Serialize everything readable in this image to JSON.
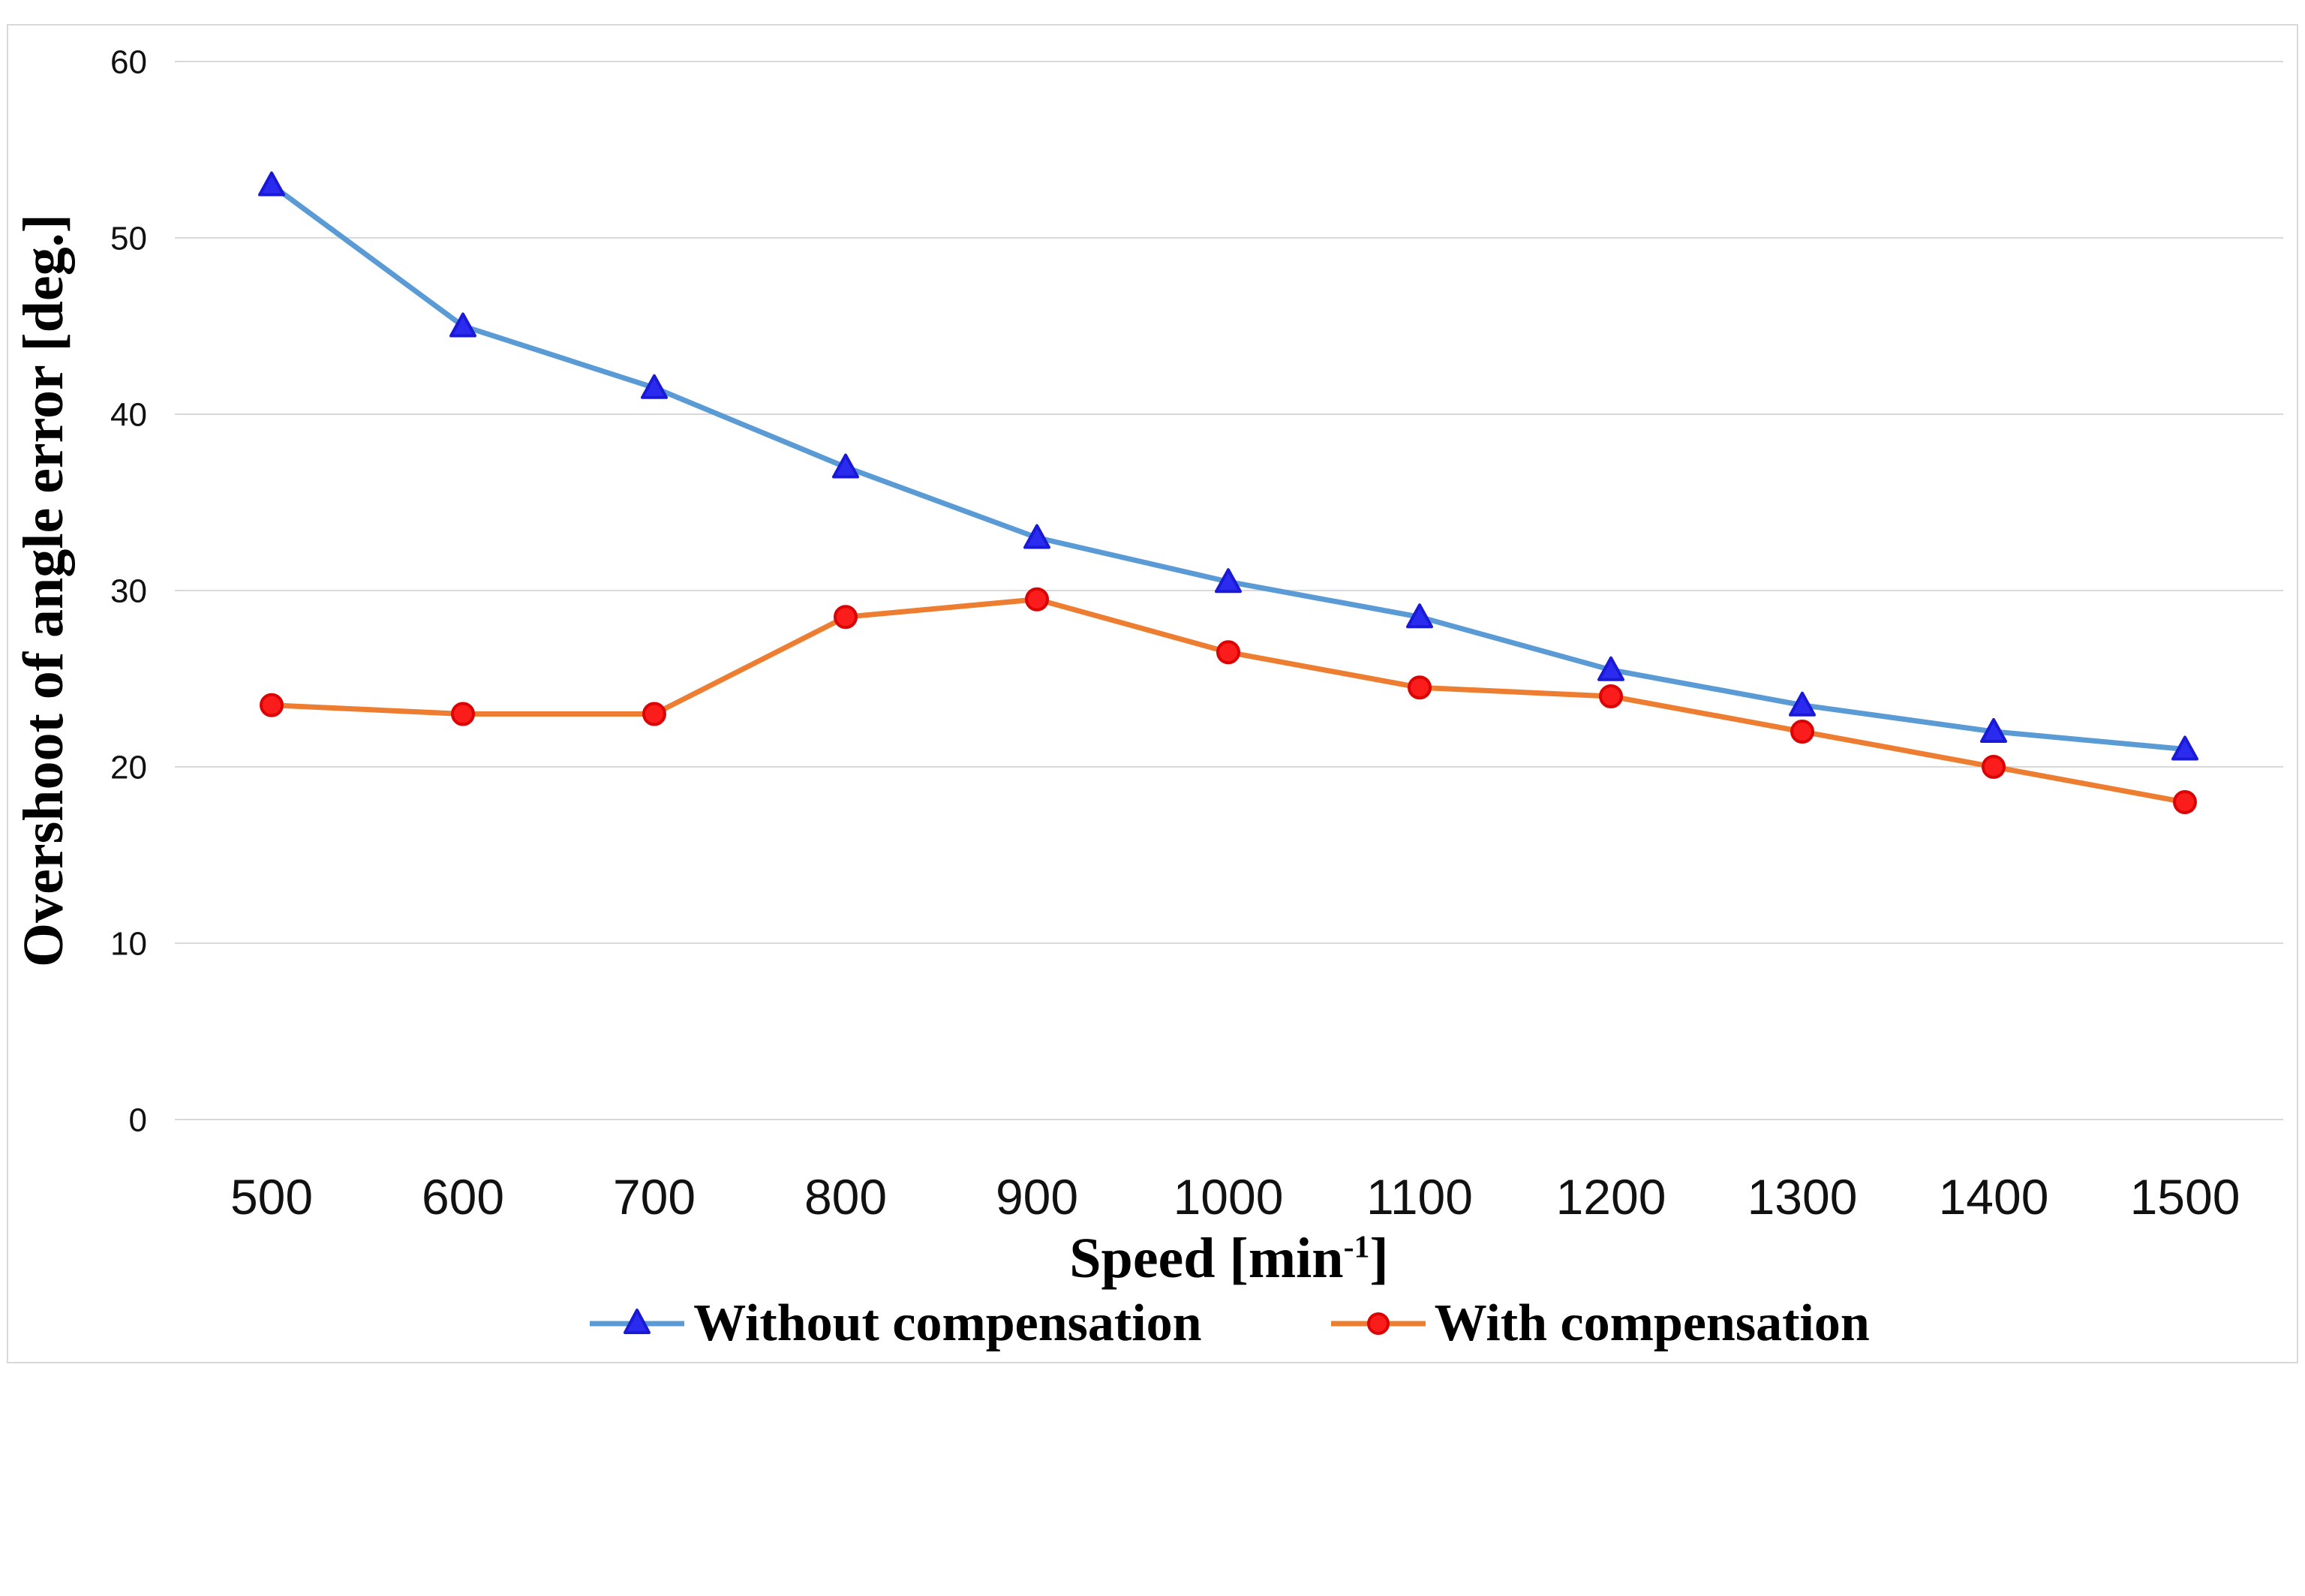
{
  "chart_data": {
    "type": "line",
    "title": "",
    "ylabel": "Overshoot of angle error [deg.]",
    "xlabel_base": "Speed [min",
    "xlabel_sup": "-1",
    "xlabel_close": "]",
    "categories": [
      500,
      600,
      700,
      800,
      900,
      1000,
      1100,
      1200,
      1300,
      1400,
      1500
    ],
    "series": [
      {
        "name": "Without compensation",
        "marker": "triangle",
        "line_color": "#5B9BD5",
        "marker_color": "#2B2BF0",
        "marker_stroke": "#1A1AD6",
        "values": [
          53,
          45,
          41.5,
          37,
          33,
          30.5,
          28.5,
          25.5,
          23.5,
          22,
          21
        ]
      },
      {
        "name": "With compensation",
        "marker": "circle",
        "line_color": "#ED7D31",
        "marker_color": "#FB1C1C",
        "marker_stroke": "#DB0404",
        "values": [
          23.5,
          23,
          23,
          28.5,
          29.5,
          26.5,
          24.5,
          24,
          22,
          20,
          18
        ]
      }
    ],
    "ylim": [
      0,
      60
    ],
    "yticks": [
      0,
      10,
      20,
      30,
      40,
      50,
      60
    ],
    "grid": "horizontal",
    "grid_color": "#D9D9D9",
    "frame_color": "#D9D9D9",
    "tick_color": "#111111",
    "legend_position": "bottom"
  }
}
